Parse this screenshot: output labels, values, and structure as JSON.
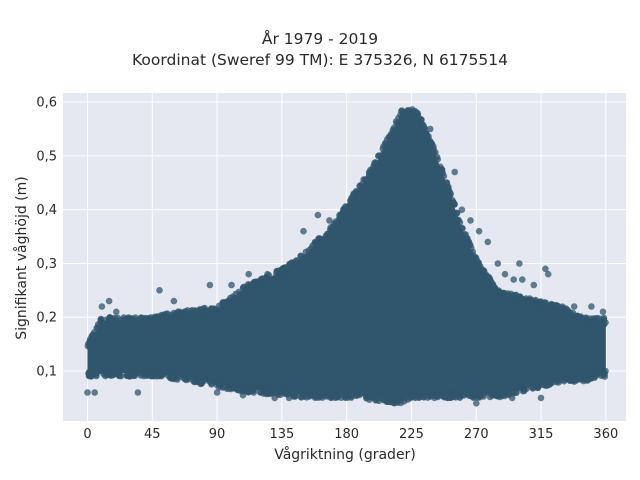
{
  "chart_data": {
    "type": "scatter",
    "title_lines": [
      "År 1979 - 2019",
      "Koordinat (Sweref 99 TM): E 375326, N 6175514"
    ],
    "xlabel": "Vågriktning (grader)",
    "ylabel": "Signifikant våghöjd (m)",
    "xlim": [
      -17,
      374
    ],
    "ylim": [
      0.007,
      0.617
    ],
    "x_ticks": [
      0,
      45,
      90,
      135,
      180,
      225,
      270,
      315,
      360
    ],
    "x_tick_labels": [
      "0",
      "45",
      "90",
      "135",
      "180",
      "225",
      "270",
      "315",
      "360"
    ],
    "y_ticks": [
      0.1,
      0.2,
      0.3,
      0.4,
      0.5,
      0.6
    ],
    "y_tick_labels": [
      "0,1",
      "0,2",
      "0,3",
      "0,4",
      "0,5",
      "0,6"
    ],
    "grid": true,
    "marker_color": "#30566e",
    "background": "#e5e8f0",
    "envelope": {
      "x": [
        0,
        10,
        30,
        45,
        60,
        90,
        110,
        135,
        150,
        170,
        185,
        200,
        210,
        218,
        225,
        230,
        240,
        250,
        260,
        270,
        285,
        300,
        315,
        330,
        345,
        360
      ],
      "ymin": [
        0.09,
        0.09,
        0.09,
        0.09,
        0.085,
        0.07,
        0.06,
        0.055,
        0.05,
        0.05,
        0.05,
        0.045,
        0.04,
        0.04,
        0.05,
        0.05,
        0.05,
        0.05,
        0.05,
        0.05,
        0.05,
        0.06,
        0.07,
        0.08,
        0.08,
        0.09
      ],
      "ymax": [
        0.15,
        0.2,
        0.2,
        0.2,
        0.21,
        0.22,
        0.26,
        0.29,
        0.32,
        0.37,
        0.43,
        0.49,
        0.54,
        0.585,
        0.59,
        0.58,
        0.52,
        0.45,
        0.37,
        0.31,
        0.25,
        0.24,
        0.23,
        0.22,
        0.2,
        0.2
      ]
    },
    "outliers": [
      [
        0,
        0.06
      ],
      [
        5,
        0.06
      ],
      [
        10,
        0.22
      ],
      [
        15,
        0.23
      ],
      [
        20,
        0.21
      ],
      [
        35,
        0.06
      ],
      [
        50,
        0.25
      ],
      [
        60,
        0.23
      ],
      [
        85,
        0.26
      ],
      [
        90,
        0.06
      ],
      [
        100,
        0.26
      ],
      [
        112,
        0.28
      ],
      [
        125,
        0.28
      ],
      [
        142,
        0.29
      ],
      [
        150,
        0.36
      ],
      [
        160,
        0.39
      ],
      [
        168,
        0.38
      ],
      [
        175,
        0.39
      ],
      [
        185,
        0.43
      ],
      [
        192,
        0.44
      ],
      [
        212,
        0.53
      ],
      [
        238,
        0.55
      ],
      [
        255,
        0.47
      ],
      [
        260,
        0.4
      ],
      [
        266,
        0.38
      ],
      [
        272,
        0.36
      ],
      [
        278,
        0.34
      ],
      [
        285,
        0.3
      ],
      [
        290,
        0.28
      ],
      [
        296,
        0.27
      ],
      [
        300,
        0.3
      ],
      [
        302,
        0.27
      ],
      [
        310,
        0.26
      ],
      [
        315,
        0.05
      ],
      [
        318,
        0.29
      ],
      [
        320,
        0.28
      ],
      [
        325,
        0.22
      ],
      [
        338,
        0.22
      ],
      [
        350,
        0.22
      ],
      [
        358,
        0.21
      ],
      [
        270,
        0.04
      ],
      [
        295,
        0.05
      ],
      [
        130,
        0.05
      ],
      [
        140,
        0.05
      ],
      [
        108,
        0.055
      ]
    ]
  }
}
